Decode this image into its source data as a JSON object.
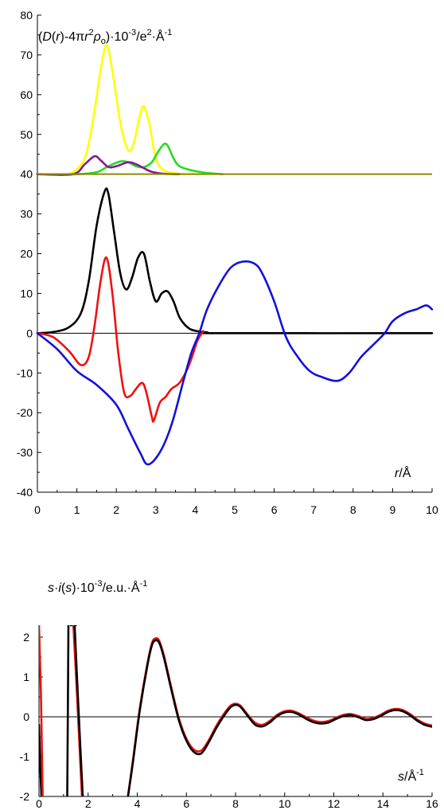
{
  "chart_data": [
    {
      "type": "line",
      "ylabel": "(D(r)-4πr²ρo)·10⁻³/e²·Å⁻¹",
      "ylabel_parts": {
        "d": "D",
        "r1": "r",
        "mid": "-4π",
        "r2": "r",
        "sq": "2",
        "rho": "ρ",
        "o": "o",
        "unit": ")·10",
        "exp": "-3",
        "tail": "/e",
        "e2": "2",
        "ang": "·Å",
        "exp2": "-1",
        "open": "(",
        "p1": "(",
        "p2": ")"
      },
      "xlabel": "r/Å",
      "xlabel_parts": {
        "var": "r",
        "unit": "/Å"
      },
      "xlim": [
        0,
        10
      ],
      "ylim": [
        -40,
        80
      ],
      "x_ticks": [
        "0",
        "1",
        "2",
        "3",
        "4",
        "5",
        "6",
        "7",
        "8",
        "9",
        "10"
      ],
      "y_ticks": [
        "-40",
        "-30",
        "-20",
        "-10",
        "0",
        "10",
        "20",
        "30",
        "40",
        "50",
        "60",
        "70",
        "80"
      ],
      "colors": {
        "yellow": "#ffff00",
        "green": "#22dd22",
        "purple": "#8a1a8a",
        "olive": "#8a8a00",
        "black": "#000000",
        "red": "#ee1111",
        "blue": "#1111dd"
      },
      "series": [
        {
          "color": "yellow",
          "x": [
            0,
            0.6,
            0.9,
            1.2,
            1.4,
            1.6,
            1.75,
            1.9,
            2.1,
            2.3,
            2.45,
            2.6,
            2.7,
            2.85,
            3.0,
            3.2,
            3.5,
            3.8,
            4.1
          ],
          "y": [
            40,
            40,
            40.5,
            44,
            53,
            66,
            72.5,
            66,
            53,
            46,
            48,
            55,
            57,
            52,
            44,
            41,
            40.2,
            40,
            40
          ]
        },
        {
          "color": "green",
          "x": [
            0,
            1.0,
            1.5,
            1.8,
            2.1,
            2.3,
            2.5,
            2.7,
            2.9,
            3.05,
            3.2,
            3.3,
            3.45,
            3.6,
            3.9,
            4.3,
            4.7
          ],
          "y": [
            40,
            40,
            40.5,
            42,
            43.2,
            43,
            42,
            41.8,
            43,
            45.5,
            47.5,
            47.2,
            44,
            42,
            41,
            40.3,
            40
          ]
        },
        {
          "color": "purple",
          "x": [
            0,
            0.9,
            1.2,
            1.45,
            1.6,
            1.8,
            2.0,
            2.3,
            2.5,
            2.7,
            2.9,
            3.2,
            3.6
          ],
          "y": [
            40,
            40,
            42.5,
            44.5,
            43.5,
            41.8,
            42,
            43,
            42.5,
            41.5,
            40.6,
            40.1,
            40
          ]
        },
        {
          "color": "black",
          "x": [
            0,
            0.4,
            0.8,
            1.1,
            1.3,
            1.5,
            1.7,
            1.8,
            1.95,
            2.1,
            2.25,
            2.4,
            2.55,
            2.7,
            2.85,
            3.0,
            3.15,
            3.3,
            3.45,
            3.6,
            3.8,
            4.0,
            4.3,
            4.6,
            10
          ],
          "y": [
            0,
            0.3,
            1.5,
            5,
            13,
            27,
            35.5,
            35,
            25,
            15,
            11,
            14,
            19,
            20,
            13,
            8,
            10,
            10.5,
            8,
            4,
            1.5,
            0.6,
            0.2,
            0,
            0
          ]
        },
        {
          "color": "red",
          "x": [
            0,
            0.4,
            0.8,
            1.1,
            1.3,
            1.45,
            1.6,
            1.75,
            1.9,
            2.05,
            2.2,
            2.35,
            2.5,
            2.65,
            2.75,
            2.9,
            2.95,
            3.1,
            3.25,
            3.4,
            3.6,
            3.8,
            3.95,
            4.05,
            4.2
          ],
          "y": [
            0,
            -1,
            -4.5,
            -8,
            -6,
            2,
            13,
            19,
            10,
            -5,
            -15,
            -15.8,
            -14,
            -12.5,
            -14.5,
            -21,
            -22,
            -17.5,
            -16,
            -14,
            -12.5,
            -9,
            -5,
            -2,
            0.5
          ]
        },
        {
          "color": "blue",
          "x": [
            0,
            0.5,
            1.0,
            1.5,
            2.0,
            2.3,
            2.6,
            2.8,
            3.1,
            3.4,
            3.7,
            3.9,
            4.1,
            4.3,
            4.6,
            4.9,
            5.2,
            5.5,
            5.7,
            6.0,
            6.3,
            6.6,
            6.9,
            7.2,
            7.6,
            7.9,
            8.2,
            8.5,
            8.8,
            9.0,
            9.3,
            9.6,
            9.85,
            10
          ],
          "y": [
            0,
            -4,
            -9.5,
            -13,
            -18,
            -24,
            -30,
            -33,
            -30,
            -23,
            -12,
            -5,
            0,
            6,
            12,
            16.5,
            18,
            17.5,
            15,
            8,
            -1,
            -6,
            -9.5,
            -11,
            -12,
            -10,
            -6,
            -3,
            0,
            3,
            5,
            6,
            7,
            6
          ]
        }
      ],
      "baseline_upper": 40,
      "baseline_upper_color": "olive"
    },
    {
      "type": "line",
      "ylabel": "s·i(s)·10⁻³/e.u.·Å⁻¹",
      "ylabel_parts": {
        "s1": "s",
        "dot": "·",
        "i": "i",
        "open": "(",
        "s2": "s",
        "close": ")·10",
        "exp": "-3",
        "tail": "/e.u.·Å",
        "exp2": "-1"
      },
      "xlabel": "s/Å⁻¹",
      "xlabel_parts": {
        "var": "s",
        "unit": "/Å",
        "exp": "-1"
      },
      "xlim": [
        0,
        16
      ],
      "ylim": [
        -2,
        2.3
      ],
      "x_ticks": [
        "0",
        "2",
        "4",
        "6",
        "8",
        "10",
        "12",
        "14",
        "16"
      ],
      "y_ticks": [
        "-2",
        "-1",
        "0",
        "1",
        "2"
      ],
      "colors": {
        "black": "#000000",
        "red": "#ee1111"
      },
      "series": [
        {
          "name": "",
          "color": "red",
          "x": [
            3.55,
            3.8,
            4.1,
            4.4,
            4.6,
            4.75,
            4.9,
            5.1,
            5.4,
            5.7,
            6.0,
            6.3,
            6.6,
            6.9,
            7.2,
            7.5,
            7.8,
            8.0,
            8.2,
            8.5,
            8.8,
            9.1,
            9.4,
            9.7,
            10.0,
            10.3,
            10.6,
            10.9,
            11.2,
            11.5,
            11.8,
            12.1,
            12.4,
            12.7,
            13.0,
            13.3,
            13.6,
            13.9,
            14.2,
            14.5,
            14.8,
            15.1,
            15.4,
            15.7,
            16.0
          ],
          "y": [
            -2.3,
            -1.2,
            0.2,
            1.3,
            1.85,
            1.97,
            1.9,
            1.5,
            0.7,
            -0.05,
            -0.55,
            -0.82,
            -0.85,
            -0.6,
            -0.25,
            0.05,
            0.28,
            0.33,
            0.28,
            0.05,
            -0.15,
            -0.2,
            -0.1,
            0.05,
            0.14,
            0.15,
            0.08,
            -0.02,
            -0.1,
            -0.13,
            -0.1,
            -0.02,
            0.05,
            0.07,
            0.02,
            -0.05,
            -0.03,
            0.05,
            0.15,
            0.2,
            0.17,
            0.07,
            -0.07,
            -0.17,
            -0.22
          ]
        },
        {
          "name": "",
          "color": "black",
          "x": [
            3.55,
            3.8,
            4.1,
            4.4,
            4.6,
            4.75,
            4.9,
            5.1,
            5.4,
            5.7,
            6.0,
            6.3,
            6.6,
            6.9,
            7.2,
            7.5,
            7.8,
            8.0,
            8.2,
            8.5,
            8.8,
            9.1,
            9.4,
            9.7,
            10.0,
            10.3,
            10.6,
            10.9,
            11.2,
            11.5,
            11.8,
            12.1,
            12.4,
            12.7,
            13.0,
            13.3,
            13.6,
            13.9,
            14.2,
            14.5,
            14.8,
            15.1,
            15.4,
            15.7,
            16.0
          ],
          "y": [
            -2.3,
            -1.25,
            0.15,
            1.25,
            1.8,
            1.92,
            1.85,
            1.45,
            0.65,
            -0.1,
            -0.6,
            -0.88,
            -0.92,
            -0.65,
            -0.3,
            0.0,
            0.24,
            0.3,
            0.25,
            0.02,
            -0.2,
            -0.24,
            -0.14,
            0.02,
            0.11,
            0.12,
            0.05,
            -0.06,
            -0.14,
            -0.17,
            -0.14,
            -0.05,
            0.02,
            0.04,
            -0.01,
            -0.08,
            -0.06,
            0.02,
            0.12,
            0.17,
            0.14,
            0.04,
            -0.1,
            -0.2,
            -0.25
          ]
        }
      ],
      "near_zero_traces": [
        {
          "color": "black",
          "x": [
            0,
            0.05,
            0.1
          ],
          "y": [
            -0.2,
            -1.2,
            -2
          ]
        },
        {
          "color": "red",
          "x": [
            0,
            0.08,
            0.15
          ],
          "y": [
            2.3,
            0.5,
            -2
          ]
        },
        {
          "color": "black",
          "x": [
            1.15,
            1.2
          ],
          "y": [
            -2,
            2.3
          ]
        },
        {
          "color": "black",
          "x": [
            1.3,
            1.5
          ],
          "y": [
            2.3,
            2.3
          ]
        },
        {
          "color": "red",
          "x": [
            1.4,
            1.55,
            1.75
          ],
          "y": [
            2.3,
            0.5,
            -2
          ]
        },
        {
          "color": "black",
          "x": [
            1.45,
            1.6,
            1.78
          ],
          "y": [
            2.3,
            0.3,
            -2
          ]
        }
      ]
    }
  ]
}
